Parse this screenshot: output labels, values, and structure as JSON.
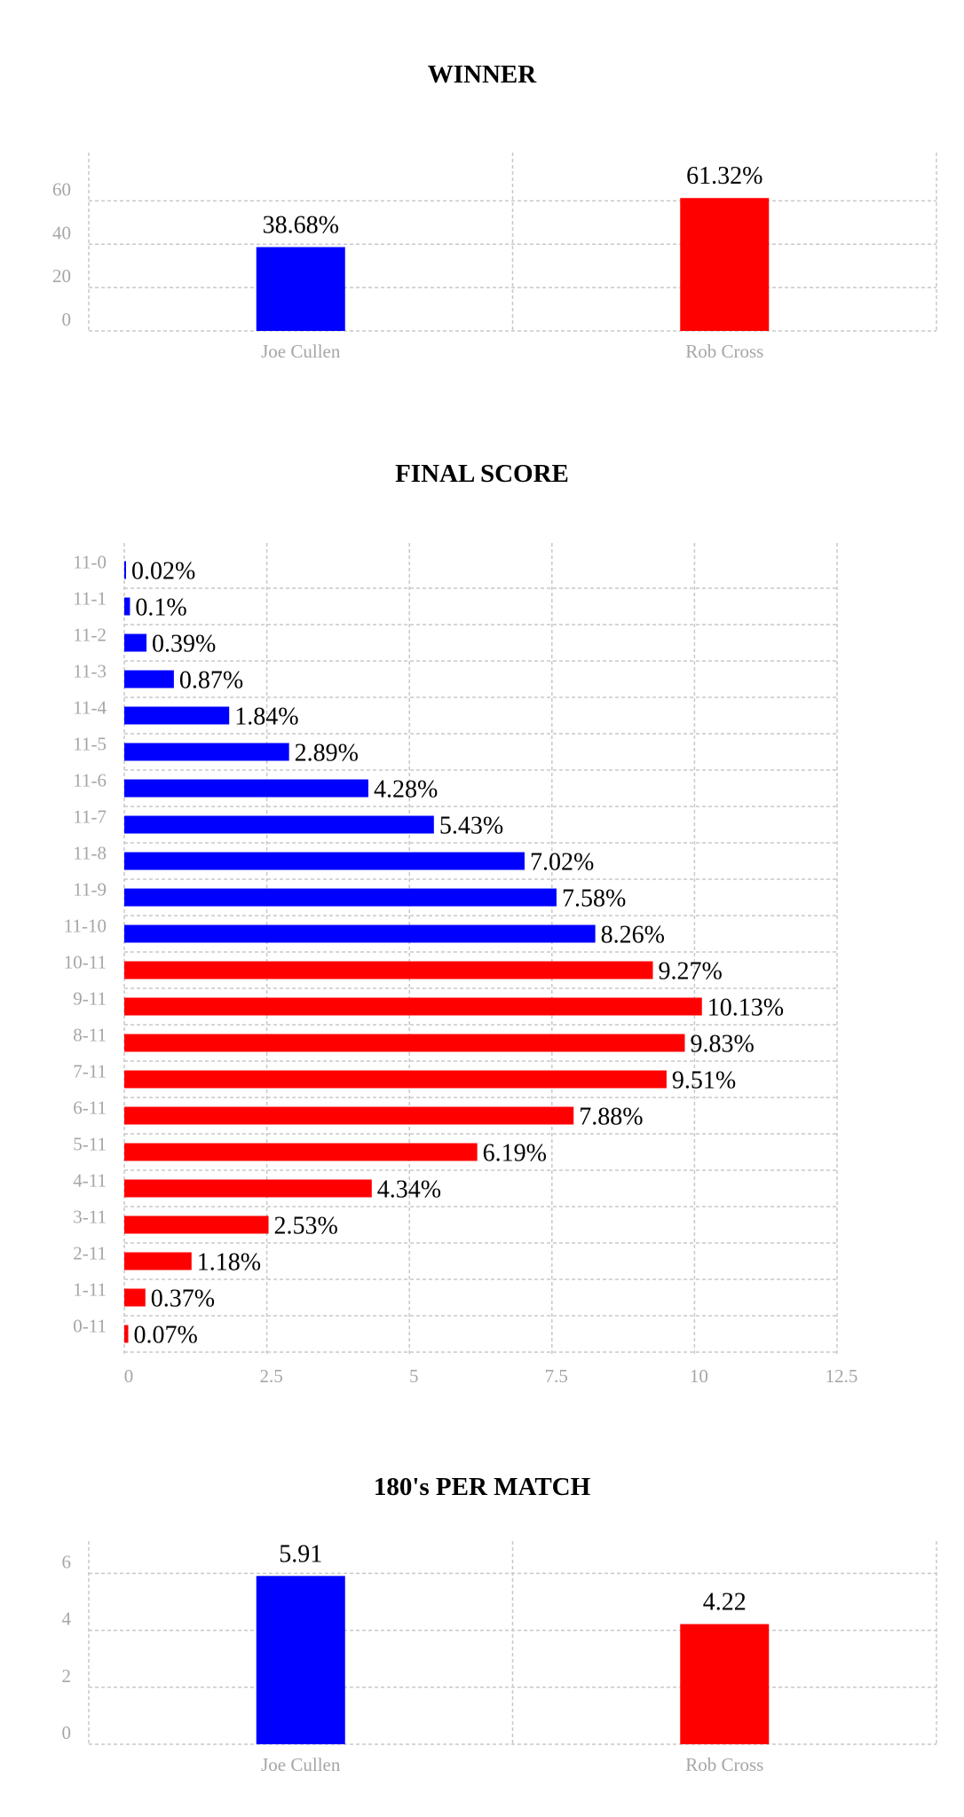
{
  "charts": {
    "winner": {
      "title": "WINNER"
    },
    "final_score": {
      "title": "FINAL SCORE"
    },
    "one_eighties": {
      "title": "180's PER MATCH"
    }
  },
  "colors": {
    "player1": "#0000ff",
    "player2": "#ff0000",
    "grid": "#c8c8c8",
    "tick": "#a6a6a6"
  },
  "chart_data": [
    {
      "id": "winner",
      "type": "bar",
      "title": "WINNER",
      "categories": [
        "Joe Cullen",
        "Rob Cross"
      ],
      "values": [
        38.68,
        61.32
      ],
      "labels": [
        "38.68%",
        "61.32%"
      ],
      "colors": [
        "#0000ff",
        "#ff0000"
      ],
      "yticks": [
        0,
        20,
        40,
        60
      ],
      "ylim": [
        0,
        70
      ],
      "grid": true
    },
    {
      "id": "final_score",
      "type": "bar",
      "orientation": "horizontal",
      "title": "FINAL SCORE",
      "categories": [
        "11-0",
        "11-1",
        "11-2",
        "11-3",
        "11-4",
        "11-5",
        "11-6",
        "11-7",
        "11-8",
        "11-9",
        "11-10",
        "10-11",
        "9-11",
        "8-11",
        "7-11",
        "6-11",
        "5-11",
        "4-11",
        "3-11",
        "2-11",
        "1-11",
        "0-11"
      ],
      "values": [
        0.02,
        0.1,
        0.39,
        0.87,
        1.84,
        2.89,
        4.28,
        5.43,
        7.02,
        7.58,
        8.26,
        9.27,
        10.13,
        9.83,
        9.51,
        7.88,
        6.19,
        4.34,
        2.53,
        1.18,
        0.37,
        0.07
      ],
      "labels": [
        "0.02%",
        "0.1%",
        "0.39%",
        "0.87%",
        "1.84%",
        "2.89%",
        "4.28%",
        "5.43%",
        "7.02%",
        "7.58%",
        "8.26%",
        "9.27%",
        "10.13%",
        "9.83%",
        "9.51%",
        "7.88%",
        "6.19%",
        "4.34%",
        "2.53%",
        "1.18%",
        "0.37%",
        "0.07%"
      ],
      "colors": [
        "#0000ff",
        "#0000ff",
        "#0000ff",
        "#0000ff",
        "#0000ff",
        "#0000ff",
        "#0000ff",
        "#0000ff",
        "#0000ff",
        "#0000ff",
        "#0000ff",
        "#ff0000",
        "#ff0000",
        "#ff0000",
        "#ff0000",
        "#ff0000",
        "#ff0000",
        "#ff0000",
        "#ff0000",
        "#ff0000",
        "#ff0000",
        "#ff0000"
      ],
      "xticks": [
        0,
        2.5,
        5,
        7.5,
        10,
        12.5
      ],
      "xtick_labels": [
        "0",
        "2.5",
        "5",
        "7.5",
        "10",
        "12.5"
      ],
      "xlim": [
        0,
        12.5
      ],
      "grid": true
    },
    {
      "id": "one_eighties",
      "type": "bar",
      "title": "180's PER MATCH",
      "categories": [
        "Joe Cullen",
        "Rob Cross"
      ],
      "values": [
        5.91,
        4.22
      ],
      "labels": [
        "5.91",
        "4.22"
      ],
      "colors": [
        "#0000ff",
        "#ff0000"
      ],
      "yticks": [
        0,
        2,
        4,
        6
      ],
      "ylim": [
        0,
        6.2
      ],
      "grid": true
    }
  ]
}
